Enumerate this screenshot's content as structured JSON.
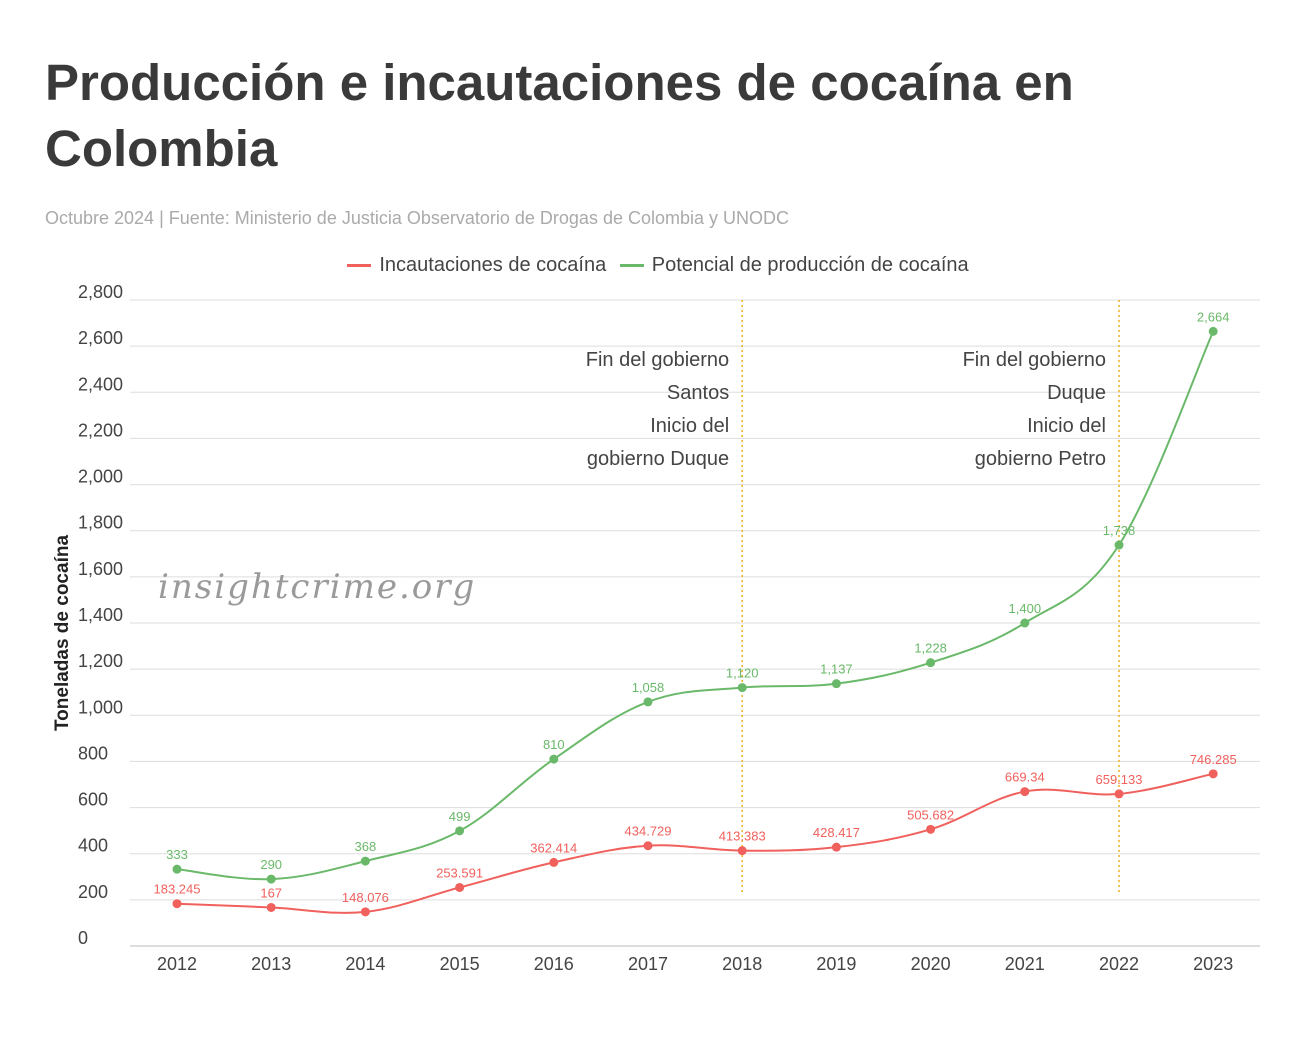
{
  "header": {
    "title": "Producción e incautaciones de cocaína en Colombia",
    "subtitle": "Octubre 2024 | Fuente: Ministerio de Justicia Observatorio de Drogas de Colombia y UNODC"
  },
  "watermark": "insightcrime.org",
  "chart_data": {
    "type": "line",
    "title": "Producción e incautaciones de cocaína en Colombia",
    "xlabel": "",
    "ylabel": "Toneladas de cocaína",
    "ylim": [
      0,
      2800
    ],
    "yticks": [
      "0",
      "200",
      "400",
      "600",
      "800",
      "1,000",
      "1,200",
      "1,400",
      "1,600",
      "1,800",
      "2,000",
      "2,200",
      "2,400",
      "2,600",
      "2,800"
    ],
    "ytick_values": [
      0,
      200,
      400,
      600,
      800,
      1000,
      1200,
      1400,
      1600,
      1800,
      2000,
      2200,
      2400,
      2600,
      2800
    ],
    "categories": [
      "2012",
      "2013",
      "2014",
      "2015",
      "2016",
      "2017",
      "2018",
      "2019",
      "2020",
      "2021",
      "2022",
      "2023"
    ],
    "grid": true,
    "legend_position": "top",
    "series": [
      {
        "name": "Incautaciones de cocaína",
        "color": "#f0605d",
        "values": [
          183.245,
          167,
          148.076,
          253.591,
          362.414,
          434.729,
          413.383,
          428.417,
          505.682,
          669.34,
          659.133,
          746.285
        ],
        "labels": [
          "183.245",
          "167",
          "148.076",
          "253.591",
          "362.414",
          "434.729",
          "413.383",
          "428.417",
          "505.682",
          "669.34",
          "659.133",
          "746.285"
        ]
      },
      {
        "name": "Potencial de producción de cocaína",
        "color": "#6ab96a",
        "values": [
          333,
          290,
          368,
          499,
          810,
          1058,
          1120,
          1137,
          1228,
          1400,
          1738,
          2664
        ],
        "labels": [
          "333",
          "290",
          "368",
          "499",
          "810",
          "1,058",
          "1,120",
          "1,137",
          "1,228",
          "1,400",
          "1,738",
          "2,664"
        ]
      }
    ],
    "annotations": [
      {
        "x": "2018",
        "lines": [
          "Fin del gobierno",
          "Santos",
          "Inicio del",
          "gobierno Duque"
        ]
      },
      {
        "x": "2022",
        "lines": [
          "Fin del gobierno",
          "Duque",
          "Inicio del",
          "gobierno Petro"
        ]
      }
    ],
    "colors": {
      "annotation_line": "#f0b429",
      "grid": "#dddddd",
      "axis_text": "#444444"
    }
  }
}
